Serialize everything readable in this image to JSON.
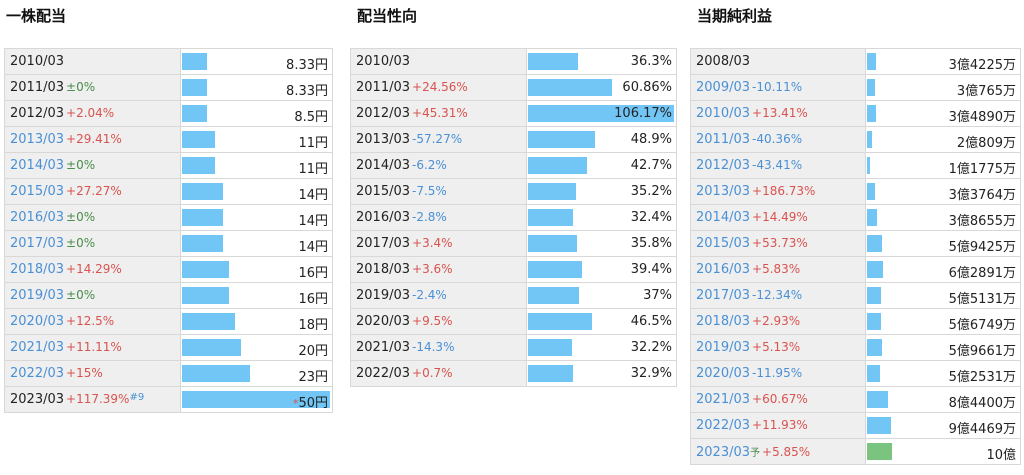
{
  "panels": [
    {
      "title": "一株配当",
      "max": 50,
      "rows": [
        {
          "year": "2010/03",
          "year_blue": false,
          "change": "",
          "change_type": "",
          "value": "8.33円",
          "num": 8.33
        },
        {
          "year": "2011/03",
          "year_blue": false,
          "change": "±0%",
          "change_type": "zero",
          "value": "8.33円",
          "num": 8.33
        },
        {
          "year": "2012/03",
          "year_blue": false,
          "change": "+2.04%",
          "change_type": "pos",
          "value": "8.5円",
          "num": 8.5
        },
        {
          "year": "2013/03",
          "year_blue": true,
          "change": "+29.41%",
          "change_type": "pos",
          "value": "11円",
          "num": 11
        },
        {
          "year": "2014/03",
          "year_blue": true,
          "change": "±0%",
          "change_type": "zero",
          "value": "11円",
          "num": 11
        },
        {
          "year": "2015/03",
          "year_blue": true,
          "change": "+27.27%",
          "change_type": "pos",
          "value": "14円",
          "num": 14
        },
        {
          "year": "2016/03",
          "year_blue": true,
          "change": "±0%",
          "change_type": "zero",
          "value": "14円",
          "num": 14
        },
        {
          "year": "2017/03",
          "year_blue": true,
          "change": "±0%",
          "change_type": "zero",
          "value": "14円",
          "num": 14
        },
        {
          "year": "2018/03",
          "year_blue": true,
          "change": "+14.29%",
          "change_type": "pos",
          "value": "16円",
          "num": 16
        },
        {
          "year": "2019/03",
          "year_blue": true,
          "change": "±0%",
          "change_type": "zero",
          "value": "16円",
          "num": 16
        },
        {
          "year": "2020/03",
          "year_blue": true,
          "change": "+12.5%",
          "change_type": "pos",
          "value": "18円",
          "num": 18
        },
        {
          "year": "2021/03",
          "year_blue": true,
          "change": "+11.11%",
          "change_type": "pos",
          "value": "20円",
          "num": 20
        },
        {
          "year": "2022/03",
          "year_blue": true,
          "change": "+15%",
          "change_type": "pos",
          "value": "23円",
          "num": 23
        },
        {
          "year": "2023/03",
          "year_blue": false,
          "change": "+117.39%",
          "change_type": "pos",
          "note": "#9",
          "prefix": "*",
          "value": "50円",
          "num": 50
        }
      ]
    },
    {
      "title": "配当性向",
      "max": 106.17,
      "rows": [
        {
          "year": "2010/03",
          "year_blue": false,
          "change": "",
          "change_type": "",
          "value": "36.3%",
          "num": 36.3
        },
        {
          "year": "2011/03",
          "year_blue": false,
          "change": "+24.56%",
          "change_type": "pos",
          "value": "60.86%",
          "num": 60.86
        },
        {
          "year": "2012/03",
          "year_blue": false,
          "change": "+45.31%",
          "change_type": "pos",
          "value": "106.17%",
          "num": 106.17
        },
        {
          "year": "2013/03",
          "year_blue": false,
          "change": "-57.27%",
          "change_type": "neg",
          "value": "48.9%",
          "num": 48.9
        },
        {
          "year": "2014/03",
          "year_blue": false,
          "change": "-6.2%",
          "change_type": "neg",
          "value": "42.7%",
          "num": 42.7
        },
        {
          "year": "2015/03",
          "year_blue": false,
          "change": "-7.5%",
          "change_type": "neg",
          "value": "35.2%",
          "num": 35.2
        },
        {
          "year": "2016/03",
          "year_blue": false,
          "change": "-2.8%",
          "change_type": "neg",
          "value": "32.4%",
          "num": 32.4
        },
        {
          "year": "2017/03",
          "year_blue": false,
          "change": "+3.4%",
          "change_type": "pos",
          "value": "35.8%",
          "num": 35.8
        },
        {
          "year": "2018/03",
          "year_blue": false,
          "change": "+3.6%",
          "change_type": "pos",
          "value": "39.4%",
          "num": 39.4
        },
        {
          "year": "2019/03",
          "year_blue": false,
          "change": "-2.4%",
          "change_type": "neg",
          "value": "37%",
          "num": 37
        },
        {
          "year": "2020/03",
          "year_blue": false,
          "change": "+9.5%",
          "change_type": "pos",
          "value": "46.5%",
          "num": 46.5
        },
        {
          "year": "2021/03",
          "year_blue": false,
          "change": "-14.3%",
          "change_type": "neg",
          "value": "32.2%",
          "num": 32.2
        },
        {
          "year": "2022/03",
          "year_blue": false,
          "change": "+0.7%",
          "change_type": "pos",
          "value": "32.9%",
          "num": 32.9
        }
      ]
    },
    {
      "title": "当期純利益",
      "max": 6.0,
      "rows": [
        {
          "year": "2008/03",
          "year_blue": false,
          "change": "",
          "change_type": "",
          "value": "3億4225万",
          "num": 0.342
        },
        {
          "year": "2009/03",
          "year_blue": true,
          "change": "-10.11%",
          "change_type": "neg",
          "value": "3億765万",
          "num": 0.308
        },
        {
          "year": "2010/03",
          "year_blue": true,
          "change": "+13.41%",
          "change_type": "pos",
          "value": "3億4890万",
          "num": 0.349
        },
        {
          "year": "2011/03",
          "year_blue": true,
          "change": "-40.36%",
          "change_type": "neg",
          "value": "2億809万",
          "num": 0.208
        },
        {
          "year": "2012/03",
          "year_blue": true,
          "change": "-43.41%",
          "change_type": "neg",
          "value": "1億1775万",
          "num": 0.118
        },
        {
          "year": "2013/03",
          "year_blue": true,
          "change": "+186.73%",
          "change_type": "pos",
          "value": "3億3764万",
          "num": 0.338
        },
        {
          "year": "2014/03",
          "year_blue": true,
          "change": "+14.49%",
          "change_type": "pos",
          "value": "3億8655万",
          "num": 0.387
        },
        {
          "year": "2015/03",
          "year_blue": true,
          "change": "+53.73%",
          "change_type": "pos",
          "value": "5億9425万",
          "num": 0.594
        },
        {
          "year": "2016/03",
          "year_blue": true,
          "change": "+5.83%",
          "change_type": "pos",
          "value": "6億2891万",
          "num": 0.629
        },
        {
          "year": "2017/03",
          "year_blue": true,
          "change": "-12.34%",
          "change_type": "neg",
          "value": "5億5131万",
          "num": 0.551
        },
        {
          "year": "2018/03",
          "year_blue": true,
          "change": "+2.93%",
          "change_type": "pos",
          "value": "5億6749万",
          "num": 0.567
        },
        {
          "year": "2019/03",
          "year_blue": true,
          "change": "+5.13%",
          "change_type": "pos",
          "value": "5億9661万",
          "num": 0.597
        },
        {
          "year": "2020/03",
          "year_blue": true,
          "change": "-11.95%",
          "change_type": "neg",
          "value": "5億2531万",
          "num": 0.525
        },
        {
          "year": "2021/03",
          "year_blue": true,
          "change": "+60.67%",
          "change_type": "pos",
          "value": "8億4400万",
          "num": 0.844
        },
        {
          "year": "2022/03",
          "year_blue": true,
          "change": "+11.93%",
          "change_type": "pos",
          "value": "9億4469万",
          "num": 0.945
        },
        {
          "year": "2023/03",
          "year_blue": true,
          "forecast": "予",
          "change": "+5.85%",
          "change_type": "pos",
          "value": "10億",
          "num": 1.0,
          "bar_color": "green"
        }
      ]
    }
  ],
  "colors": {
    "bar": "#71c6f6",
    "bar_forecast": "#7bc47f",
    "positive": "#d9534f",
    "negative": "#4a90d6",
    "zero": "#4a8c4a"
  }
}
